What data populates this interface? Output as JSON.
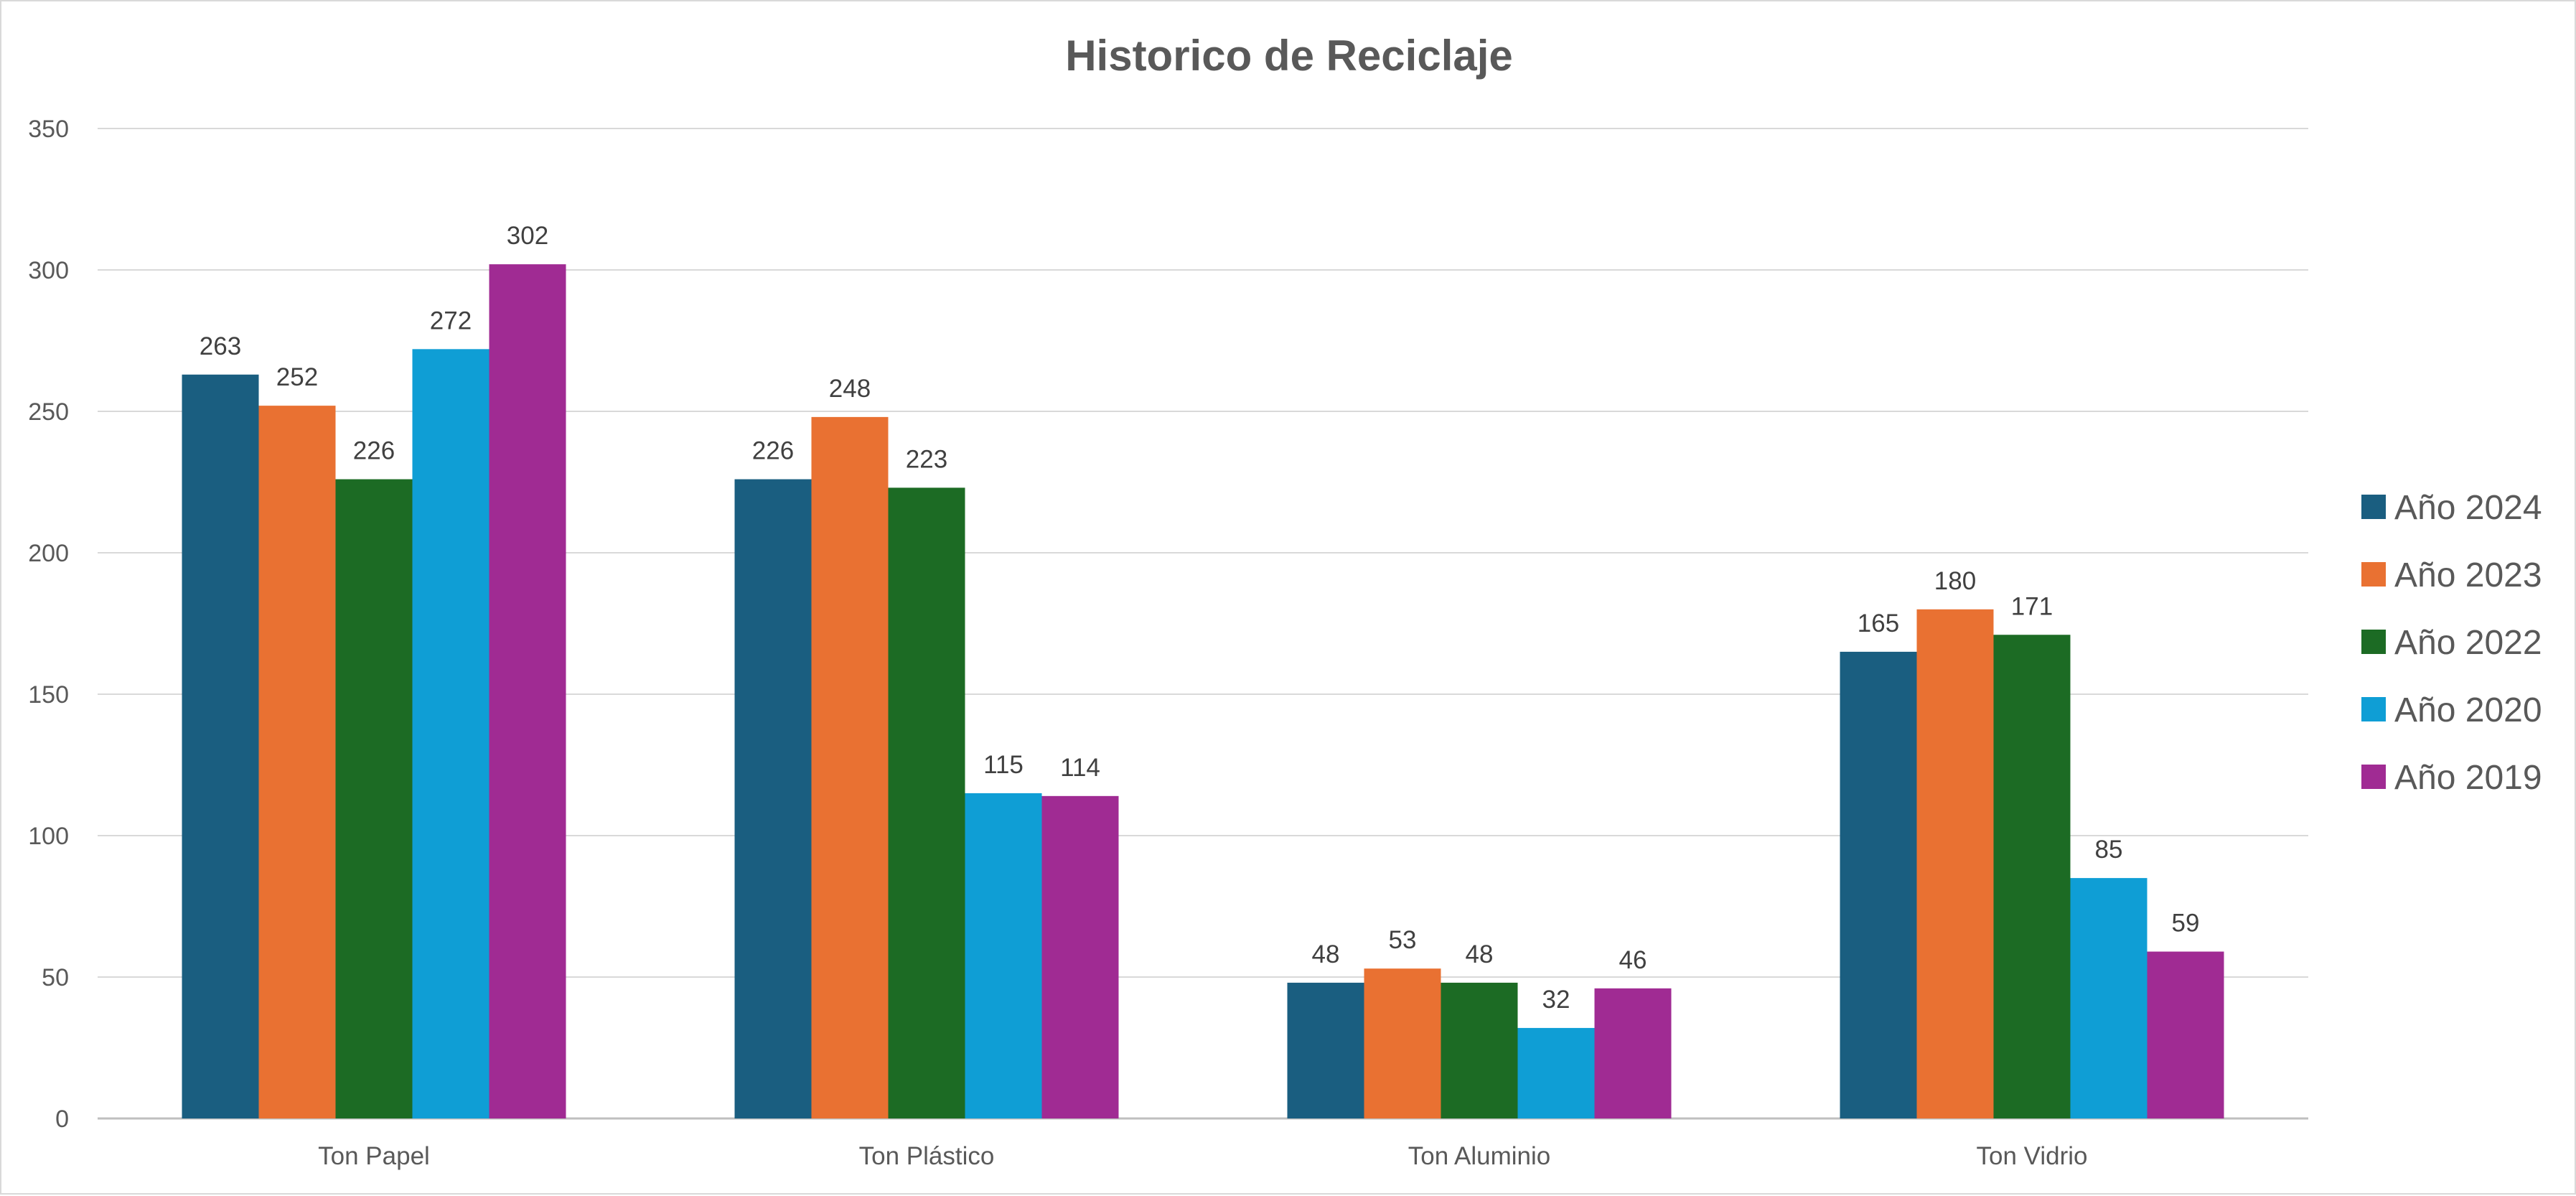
{
  "chart_data": {
    "type": "bar",
    "title": "Historico de Reciclaje",
    "xlabel": "",
    "ylabel": "",
    "categories": [
      "Ton Papel",
      "Ton Plástico",
      "Ton Aluminio",
      "Ton Vidrio"
    ],
    "series": [
      {
        "name": "Año 2024",
        "color": "#1a5e80",
        "values": [
          263,
          226,
          48,
          165
        ]
      },
      {
        "name": "Año 2023",
        "color": "#e97132",
        "values": [
          252,
          248,
          53,
          180
        ]
      },
      {
        "name": "Año 2022",
        "color": "#1c6b24",
        "values": [
          226,
          223,
          48,
          171
        ]
      },
      {
        "name": "Año 2020",
        "color": "#0f9ed5",
        "values": [
          272,
          115,
          32,
          85
        ]
      },
      {
        "name": "Año 2019",
        "color": "#a02b93",
        "values": [
          302,
          114,
          46,
          59
        ]
      }
    ],
    "ylim": [
      0,
      350
    ],
    "yticks": [
      0,
      50,
      100,
      150,
      200,
      250,
      300,
      350
    ],
    "grid": true,
    "legend_position": "right",
    "data_labels": true
  }
}
